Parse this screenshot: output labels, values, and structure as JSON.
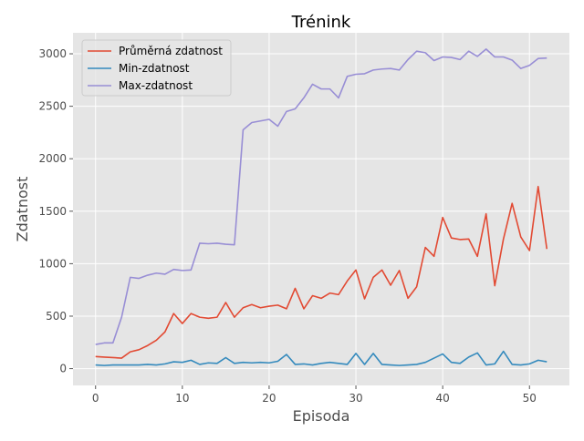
{
  "chart_data": {
    "type": "line",
    "title": "Trénink",
    "xlabel": "Episoda",
    "ylabel": "Zdatnost",
    "xlim": [
      -2.6,
      54.6
    ],
    "ylim": [
      -160,
      3200
    ],
    "xticks": [
      0,
      10,
      20,
      30,
      40,
      50
    ],
    "yticks": [
      0,
      500,
      1000,
      1500,
      2000,
      2500,
      3000
    ],
    "grid": true,
    "legend_position": "top-left",
    "x": [
      0,
      1,
      2,
      3,
      4,
      5,
      6,
      7,
      8,
      9,
      10,
      11,
      12,
      13,
      14,
      15,
      16,
      17,
      18,
      19,
      20,
      21,
      22,
      23,
      24,
      25,
      26,
      27,
      28,
      29,
      30,
      31,
      32,
      33,
      34,
      35,
      36,
      37,
      38,
      39,
      40,
      41,
      42,
      43,
      44,
      45,
      46,
      47,
      48,
      49,
      50,
      51,
      52
    ],
    "series": [
      {
        "name": "Průměrná zdatnost",
        "color": "#e24a33",
        "values": [
          115,
          110,
          105,
          100,
          160,
          180,
          220,
          270,
          350,
          525,
          430,
          525,
          490,
          480,
          490,
          630,
          490,
          580,
          610,
          580,
          595,
          605,
          570,
          765,
          570,
          695,
          670,
          720,
          705,
          835,
          940,
          665,
          870,
          940,
          795,
          935,
          670,
          780,
          1155,
          1070,
          1440,
          1245,
          1230,
          1235,
          1070,
          1475,
          790,
          1235,
          1575,
          1255,
          1125,
          1735,
          1140
        ]
      },
      {
        "name": "Min-zdatnost",
        "color": "#348abd",
        "values": [
          35,
          30,
          35,
          35,
          35,
          35,
          40,
          35,
          45,
          65,
          60,
          80,
          40,
          55,
          50,
          105,
          50,
          60,
          55,
          60,
          55,
          70,
          135,
          40,
          45,
          35,
          50,
          60,
          50,
          40,
          145,
          40,
          145,
          40,
          35,
          30,
          35,
          40,
          60,
          100,
          140,
          60,
          50,
          110,
          150,
          35,
          45,
          165,
          40,
          35,
          45,
          80,
          65
        ]
      },
      {
        "name": "Max-zdatnost",
        "color": "#988ed5",
        "values": [
          230,
          245,
          245,
          490,
          870,
          860,
          890,
          910,
          900,
          945,
          935,
          940,
          1195,
          1190,
          1195,
          1185,
          1180,
          2275,
          2345,
          2360,
          2375,
          2310,
          2450,
          2475,
          2580,
          2710,
          2665,
          2665,
          2580,
          2785,
          2805,
          2810,
          2845,
          2855,
          2860,
          2845,
          2945,
          3025,
          3010,
          2935,
          2970,
          2965,
          2945,
          3025,
          2975,
          3045,
          2970,
          2970,
          2940,
          2860,
          2890,
          2955,
          2960
        ]
      }
    ]
  }
}
